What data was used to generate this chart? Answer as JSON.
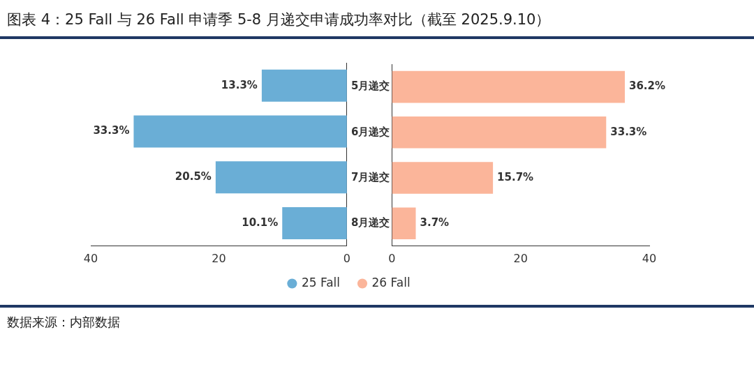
{
  "chart_data": [
    {
      "type": "bar",
      "title": "图表 4：25 Fall 与 26 Fall 申请季 5-8 月递交申请成功率对比（截至 2025.9.10）",
      "orientation": "horizontal",
      "categories": [
        null,
        null,
        null,
        null
      ],
      "series": [
        {
          "name": "25 Fall",
          "color": "#6aaed6",
          "values": [
            13.3,
            33.3,
            20.5,
            10.1
          ],
          "value_labels": [
            "13.3%",
            "33.3%",
            "20.5%",
            "10.1%"
          ]
        }
      ],
      "xlim": [
        40,
        0
      ],
      "xticks": [
        40,
        20,
        0
      ],
      "grid": false,
      "legend": "bottom",
      "tick_labels": "x",
      "annotations": [
        "数据来源：内部数据"
      ]
    },
    {
      "type": "bar",
      "orientation": "horizontal",
      "categories": [
        "5月递交",
        "6月递交",
        "7月递交",
        "8月递交"
      ],
      "series": [
        {
          "name": "26 Fall",
          "color": "#fbb59a",
          "values": [
            36.2,
            33.3,
            15.7,
            3.7
          ],
          "value_labels": [
            "36.2%",
            "33.3%",
            "15.7%",
            "3.7%"
          ]
        }
      ],
      "xlim": [
        0,
        40
      ],
      "xticks": [
        0,
        20,
        40
      ],
      "grid": false,
      "legend": "bottom"
    }
  ]
}
